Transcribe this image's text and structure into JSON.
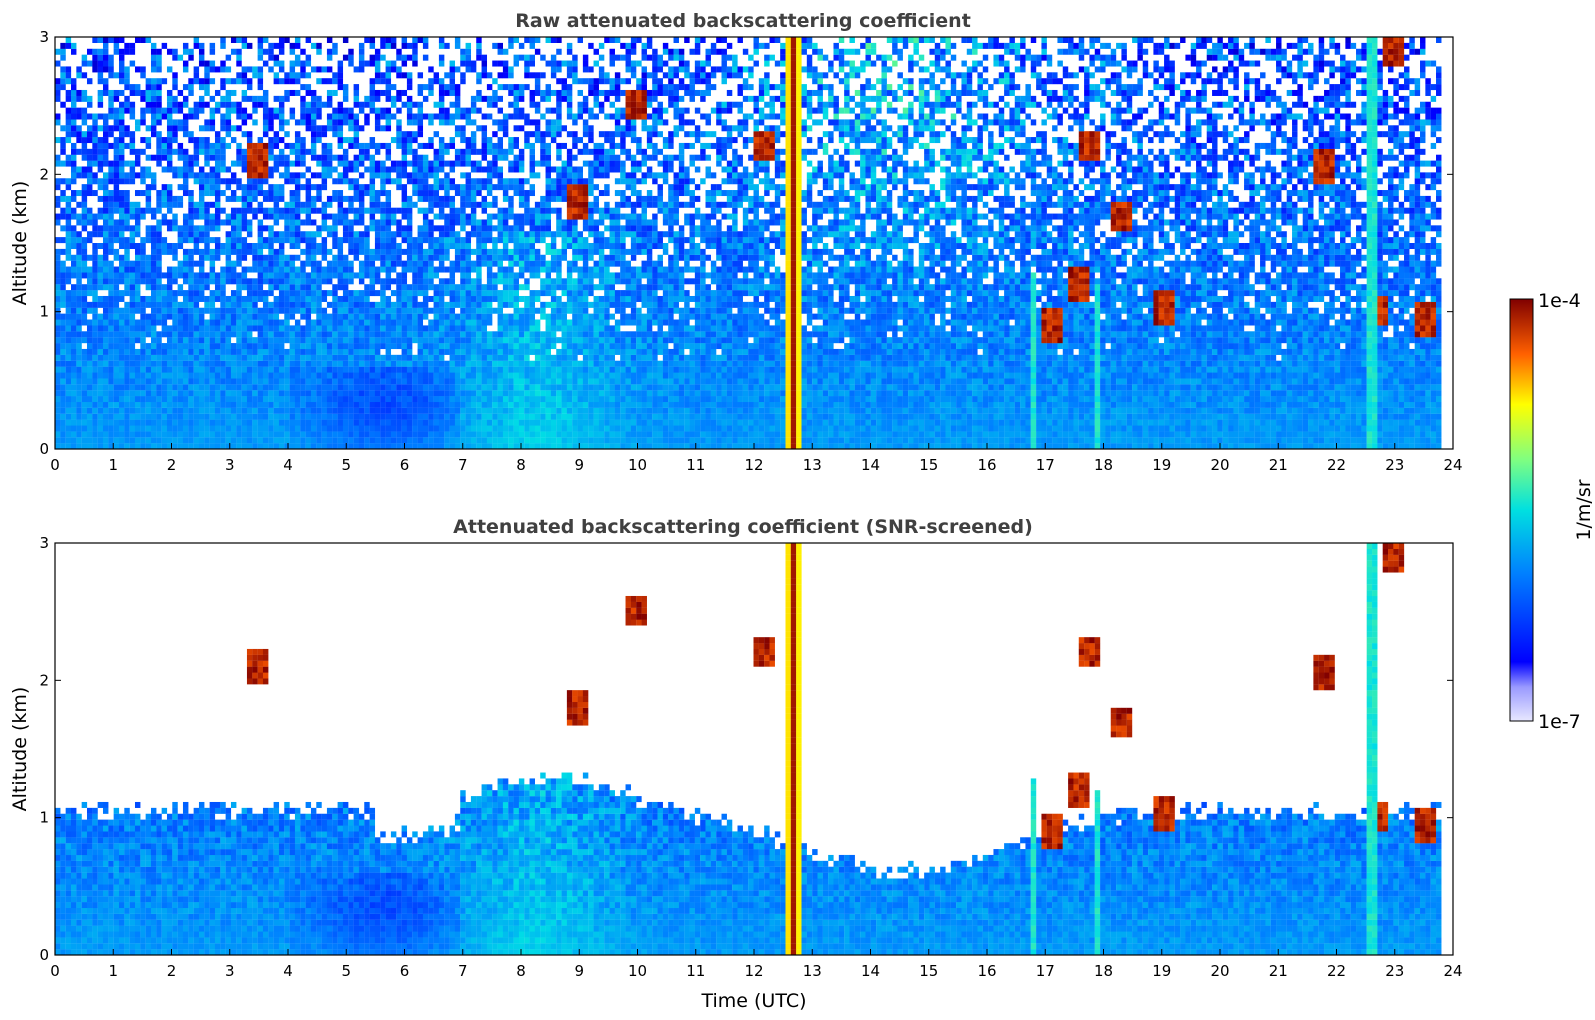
{
  "chart_data": [
    {
      "type": "heatmap",
      "title": "Raw attenuated backscattering coefficient",
      "xlabel": "",
      "ylabel": "Altitude (km)",
      "xlim": [
        0,
        24
      ],
      "ylim": [
        0,
        3
      ],
      "x_ticks": [
        "0",
        "1",
        "2",
        "3",
        "4",
        "5",
        "6",
        "7",
        "8",
        "9",
        "10",
        "11",
        "12",
        "13",
        "14",
        "15",
        "16",
        "17",
        "18",
        "19",
        "20",
        "21",
        "22",
        "23",
        "24"
      ],
      "y_ticks": [
        "0",
        "1",
        "2",
        "3"
      ],
      "screened": false,
      "data_end_time": 23.8,
      "features": [
        {
          "kind": "strong_vertical_plume",
          "t_start": 12.55,
          "t_end": 12.8,
          "alt_min": 0,
          "alt_max": 3,
          "level": "max"
        },
        {
          "kind": "vertical_streak",
          "t": 16.8,
          "alt_min": 0,
          "alt_max": 1.3,
          "level": "medium"
        },
        {
          "kind": "vertical_streak",
          "t": 17.9,
          "alt_min": 0,
          "alt_max": 1.2,
          "level": "medium"
        },
        {
          "kind": "vertical_streak",
          "t": 22.6,
          "alt_min": 0,
          "alt_max": 3,
          "level": "medium"
        },
        {
          "kind": "cloud_patch",
          "t": 3.45,
          "alt": 2.1,
          "level": "high"
        },
        {
          "kind": "cloud_patch",
          "t": 8.95,
          "alt": 1.8,
          "level": "high"
        },
        {
          "kind": "cloud_patch",
          "t": 9.95,
          "alt": 2.5,
          "level": "high"
        },
        {
          "kind": "cloud_patch",
          "t": 12.2,
          "alt": 2.2,
          "level": "high"
        },
        {
          "kind": "cloud_patch",
          "t": 17.1,
          "alt": 0.9,
          "level": "high"
        },
        {
          "kind": "cloud_patch",
          "t": 17.6,
          "alt": 1.2,
          "level": "high"
        },
        {
          "kind": "cloud_patch",
          "t": 17.8,
          "alt": 2.2,
          "level": "high"
        },
        {
          "kind": "cloud_patch",
          "t": 18.3,
          "alt": 1.7,
          "level": "high"
        },
        {
          "kind": "cloud_patch",
          "t": 19.05,
          "alt": 1.03,
          "level": "high"
        },
        {
          "kind": "cloud_patch",
          "t": 21.8,
          "alt": 2.05,
          "level": "high"
        },
        {
          "kind": "cloud_patch",
          "t": 22.7,
          "alt": 1.0,
          "level": "high"
        },
        {
          "kind": "cloud_patch",
          "t": 23.0,
          "alt": 2.9,
          "level": "high"
        },
        {
          "kind": "cloud_patch",
          "t": 23.5,
          "alt": 0.95,
          "level": "high"
        }
      ]
    },
    {
      "type": "heatmap",
      "title": "Attenuated backscattering coefficient (SNR-screened)",
      "xlabel": "Time (UTC)",
      "ylabel": "Altitude (km)",
      "xlim": [
        0,
        24
      ],
      "ylim": [
        0,
        3
      ],
      "x_ticks": [
        "0",
        "1",
        "2",
        "3",
        "4",
        "5",
        "6",
        "7",
        "8",
        "9",
        "10",
        "11",
        "12",
        "13",
        "14",
        "15",
        "16",
        "17",
        "18",
        "19",
        "20",
        "21",
        "22",
        "23",
        "24"
      ],
      "y_ticks": [
        "0",
        "1",
        "2",
        "3"
      ],
      "screened": true,
      "data_end_time": 23.8
    }
  ],
  "colorbar": {
    "label": "1/m/sr",
    "max_label": "1e-4",
    "min_label": "1e-7",
    "colormap": "jet"
  }
}
